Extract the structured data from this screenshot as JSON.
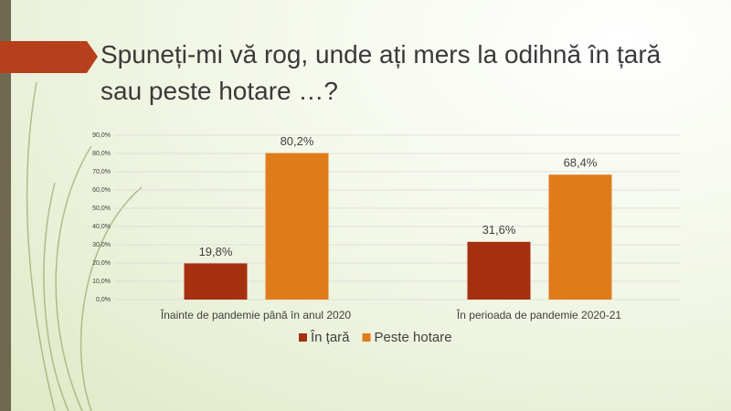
{
  "chart_data": {
    "type": "bar",
    "title": "Spuneți-mi vă rog, unde ați mers la odihnă în țară sau peste hotare …?",
    "categories": [
      "Înainte de pandemie până în anul 2020",
      "În perioada de pandemie 2020-21"
    ],
    "series": [
      {
        "name": "În țară",
        "color": "#a5300f",
        "values": [
          19.8,
          31.6
        ],
        "value_labels": [
          "19,8%",
          "31,6%"
        ]
      },
      {
        "name": "Peste hotare",
        "color": "#e07b1c",
        "values": [
          80.2,
          68.4
        ],
        "value_labels": [
          "80,2%",
          "68,4%"
        ]
      }
    ],
    "ylim": [
      0,
      90
    ],
    "yticks": [
      {
        "value": 0,
        "label": "0,0%"
      },
      {
        "value": 10,
        "label": "10,0%"
      },
      {
        "value": 20,
        "label": "20,0%"
      },
      {
        "value": 30,
        "label": "30,0%"
      },
      {
        "value": 40,
        "label": "40,0%"
      },
      {
        "value": 50,
        "label": "50,0%"
      },
      {
        "value": 60,
        "label": "60,0%"
      },
      {
        "value": 70,
        "label": "70,0%"
      },
      {
        "value": 80,
        "label": "80,0%"
      },
      {
        "value": 90,
        "label": "90,0%"
      }
    ],
    "grid": true,
    "legend": "bottom"
  }
}
